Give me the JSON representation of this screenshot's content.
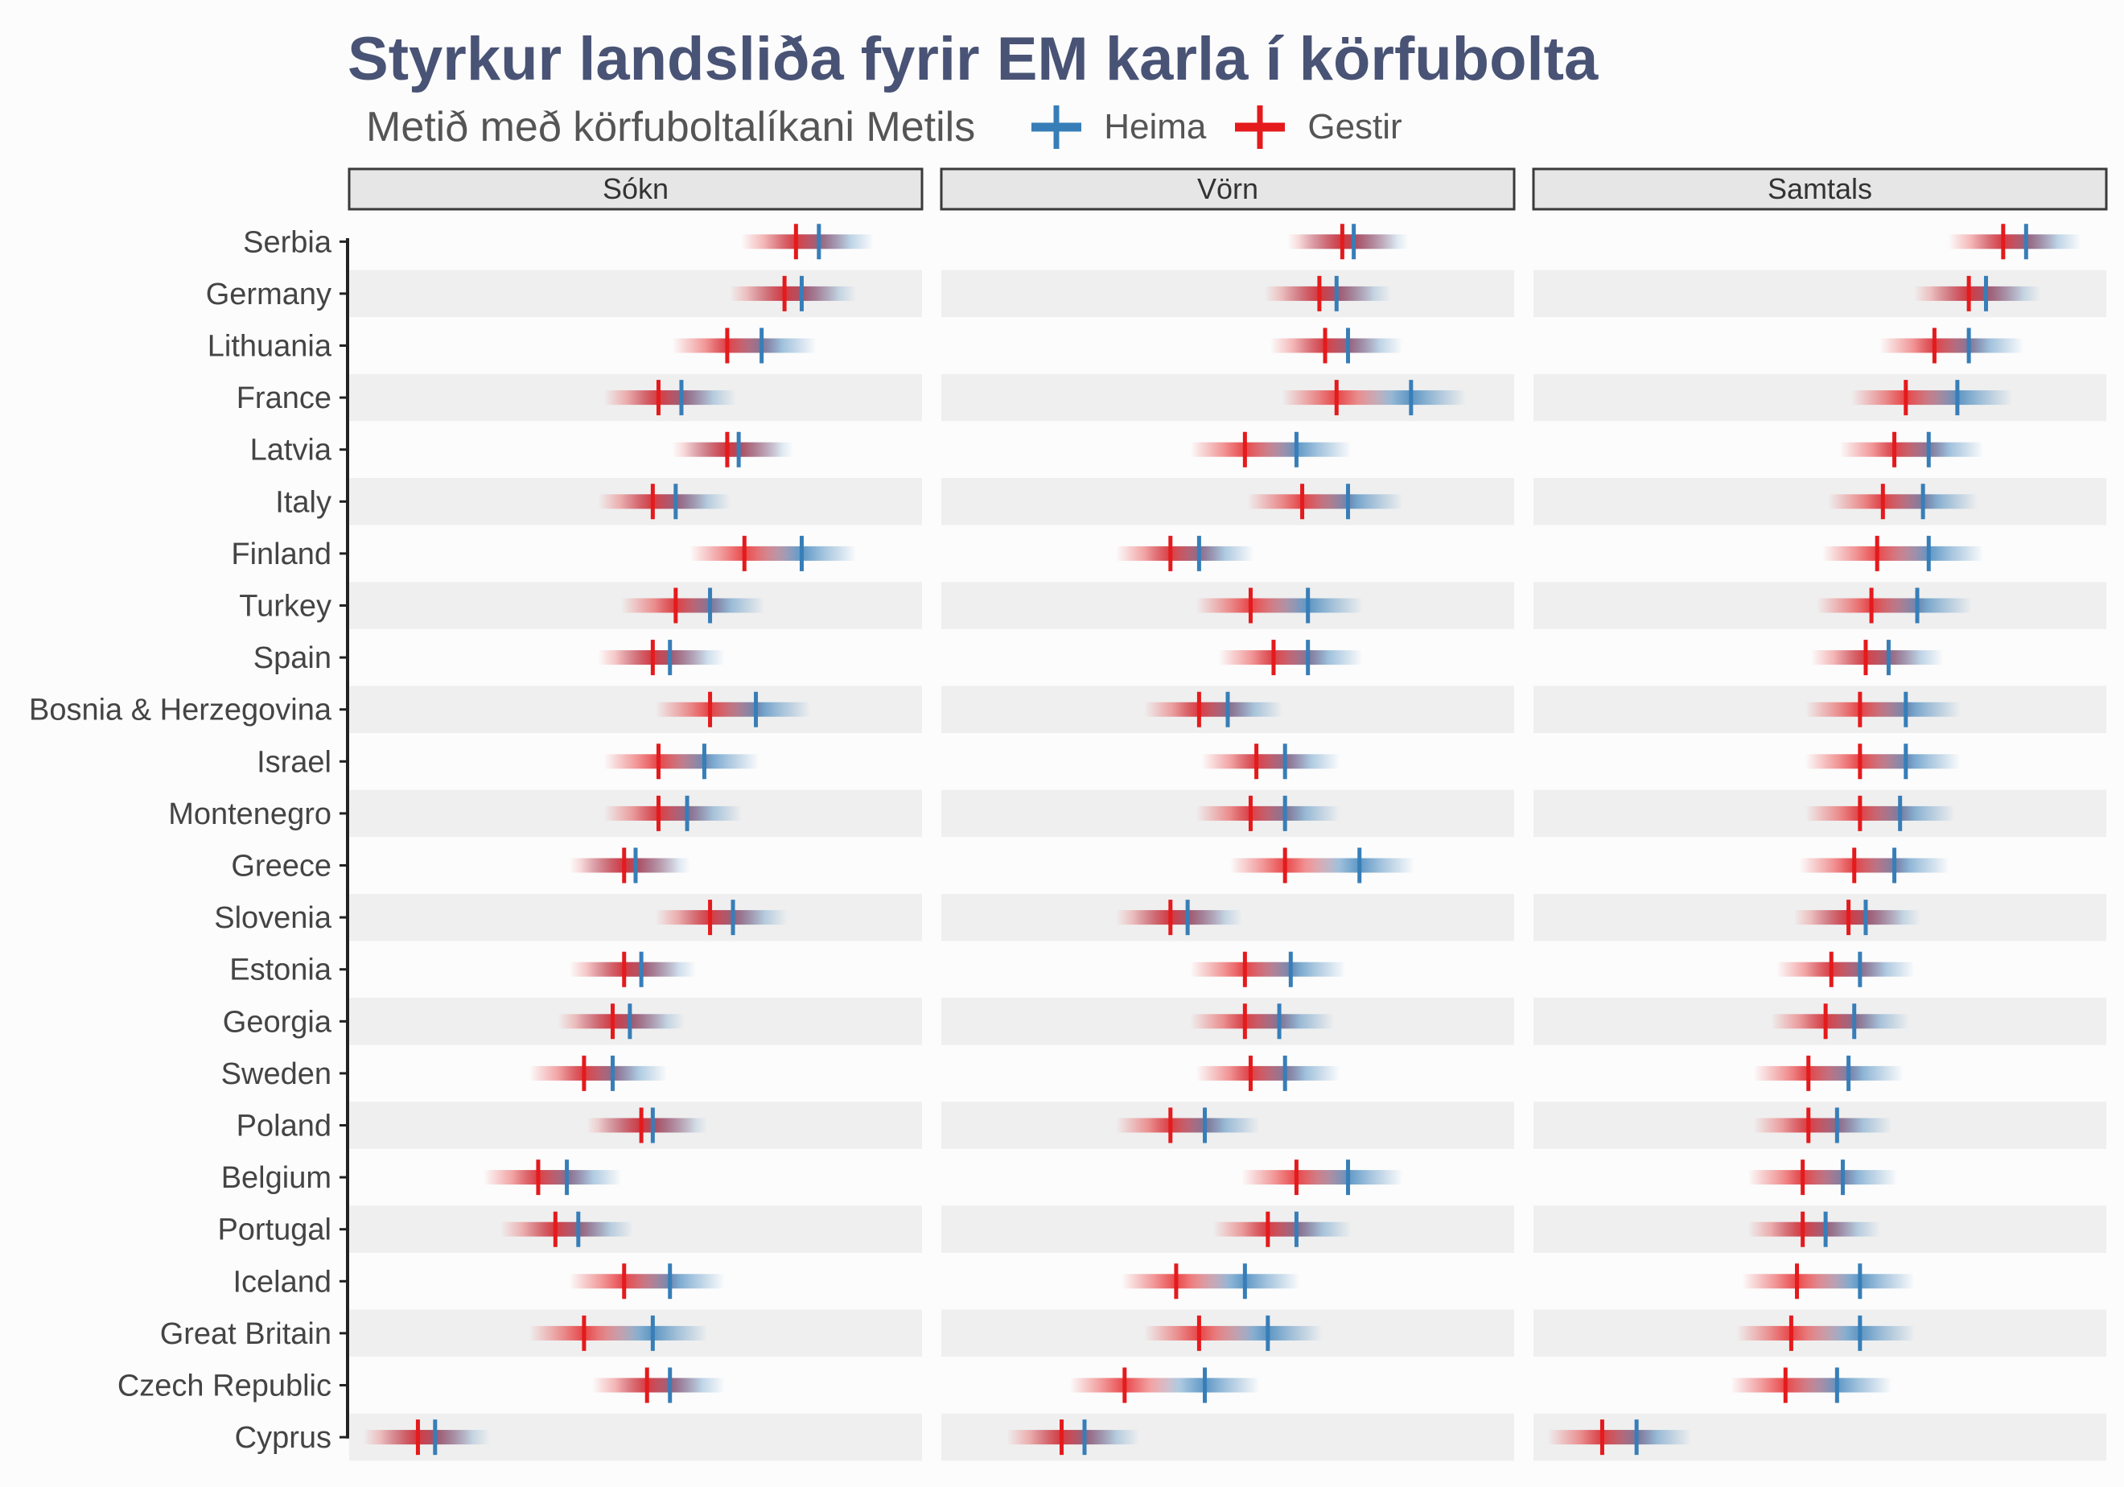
{
  "title": "Styrkur landsliða fyrir EM karla í körfubolta",
  "subtitle": "Metið með körfuboltalíkani Metils",
  "legend": {
    "items": [
      {
        "label": "Heima",
        "color": "#377eb8"
      },
      {
        "label": "Gestir",
        "color": "#e41a1c"
      }
    ]
  },
  "chart_data": {
    "type": "interval-dot",
    "facets": [
      "Sókn",
      "Vörn",
      "Samtals"
    ],
    "categories": [
      "Serbia",
      "Germany",
      "Lithuania",
      "France",
      "Latvia",
      "Italy",
      "Finland",
      "Turkey",
      "Spain",
      "Bosnia & Herzegovina",
      "Israel",
      "Montenegro",
      "Greece",
      "Slovenia",
      "Estonia",
      "Georgia",
      "Sweden",
      "Poland",
      "Belgium",
      "Portugal",
      "Iceland",
      "Great Britain",
      "Czech Republic",
      "Cyprus"
    ],
    "x_scale": "free per facet, no tick labels shown",
    "series": [
      {
        "name": "Heima",
        "color": "#377eb8",
        "values": {
          "Sókn": [
            0.82,
            0.79,
            0.72,
            0.58,
            0.68,
            0.57,
            0.79,
            0.63,
            0.56,
            0.71,
            0.62,
            0.59,
            0.5,
            0.67,
            0.51,
            0.49,
            0.46,
            0.53,
            0.38,
            0.4,
            0.56,
            0.53,
            0.56,
            0.15
          ],
          "Vörn": [
            0.72,
            0.69,
            0.71,
            0.82,
            0.62,
            0.71,
            0.45,
            0.64,
            0.64,
            0.5,
            0.6,
            0.6,
            0.73,
            0.43,
            0.61,
            0.59,
            0.6,
            0.46,
            0.71,
            0.62,
            0.53,
            0.57,
            0.46,
            0.25
          ],
          "Samtals": [
            0.86,
            0.79,
            0.76,
            0.74,
            0.69,
            0.68,
            0.69,
            0.67,
            0.62,
            0.65,
            0.65,
            0.64,
            0.63,
            0.58,
            0.57,
            0.56,
            0.55,
            0.53,
            0.54,
            0.51,
            0.57,
            0.57,
            0.53,
            0.18
          ]
        }
      },
      {
        "name": "Gestir",
        "color": "#e41a1c",
        "values": {
          "Sókn": [
            0.78,
            0.76,
            0.66,
            0.54,
            0.66,
            0.53,
            0.69,
            0.57,
            0.53,
            0.63,
            0.54,
            0.54,
            0.48,
            0.63,
            0.48,
            0.46,
            0.41,
            0.51,
            0.33,
            0.36,
            0.48,
            0.41,
            0.52,
            0.12
          ],
          "Vörn": [
            0.7,
            0.66,
            0.67,
            0.69,
            0.53,
            0.63,
            0.4,
            0.54,
            0.58,
            0.45,
            0.55,
            0.54,
            0.6,
            0.4,
            0.53,
            0.53,
            0.54,
            0.4,
            0.62,
            0.57,
            0.41,
            0.45,
            0.32,
            0.21
          ],
          "Samtals": [
            0.82,
            0.76,
            0.7,
            0.65,
            0.63,
            0.61,
            0.6,
            0.59,
            0.58,
            0.57,
            0.57,
            0.57,
            0.56,
            0.55,
            0.52,
            0.51,
            0.48,
            0.48,
            0.47,
            0.47,
            0.46,
            0.45,
            0.44,
            0.12
          ]
        }
      }
    ],
    "legend_position": "top, beside subtitle"
  }
}
